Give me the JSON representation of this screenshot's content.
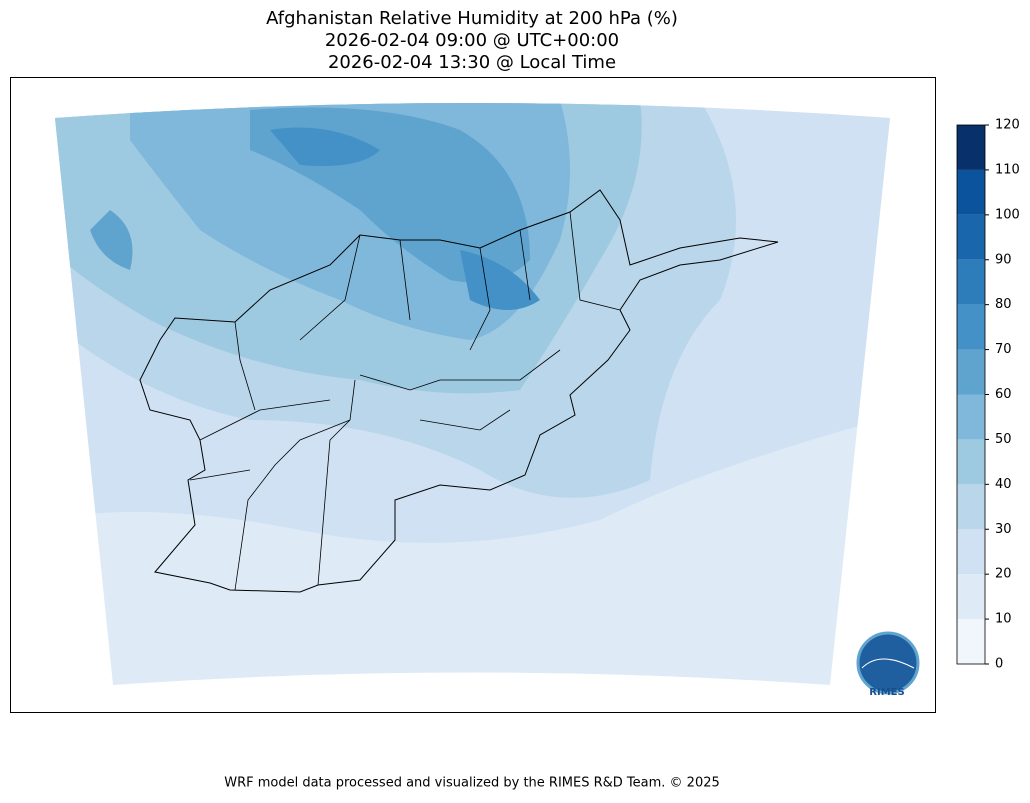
{
  "title_lines": [
    "Afghanistan Relative Humidity at 200 hPa (%)",
    "2026-02-04 09:00 @ UTC+00:00",
    "2026-02-04 13:30 @ Local Time"
  ],
  "colorbar": {
    "levels": [
      0,
      10,
      20,
      30,
      40,
      50,
      60,
      70,
      80,
      90,
      100,
      110,
      120
    ],
    "colors": [
      "#f0f6fc",
      "#deebf7",
      "#cfe1f2",
      "#bad6eb",
      "#9ecae1",
      "#7fb8da",
      "#5fa4cf",
      "#4391c6",
      "#2d7dbb",
      "#1966ad",
      "#0b539c",
      "#08306b"
    ]
  },
  "logo": "RIMES",
  "footer": "WRF model data processed and visualized by the RIMES R&D Team. © 2025"
}
